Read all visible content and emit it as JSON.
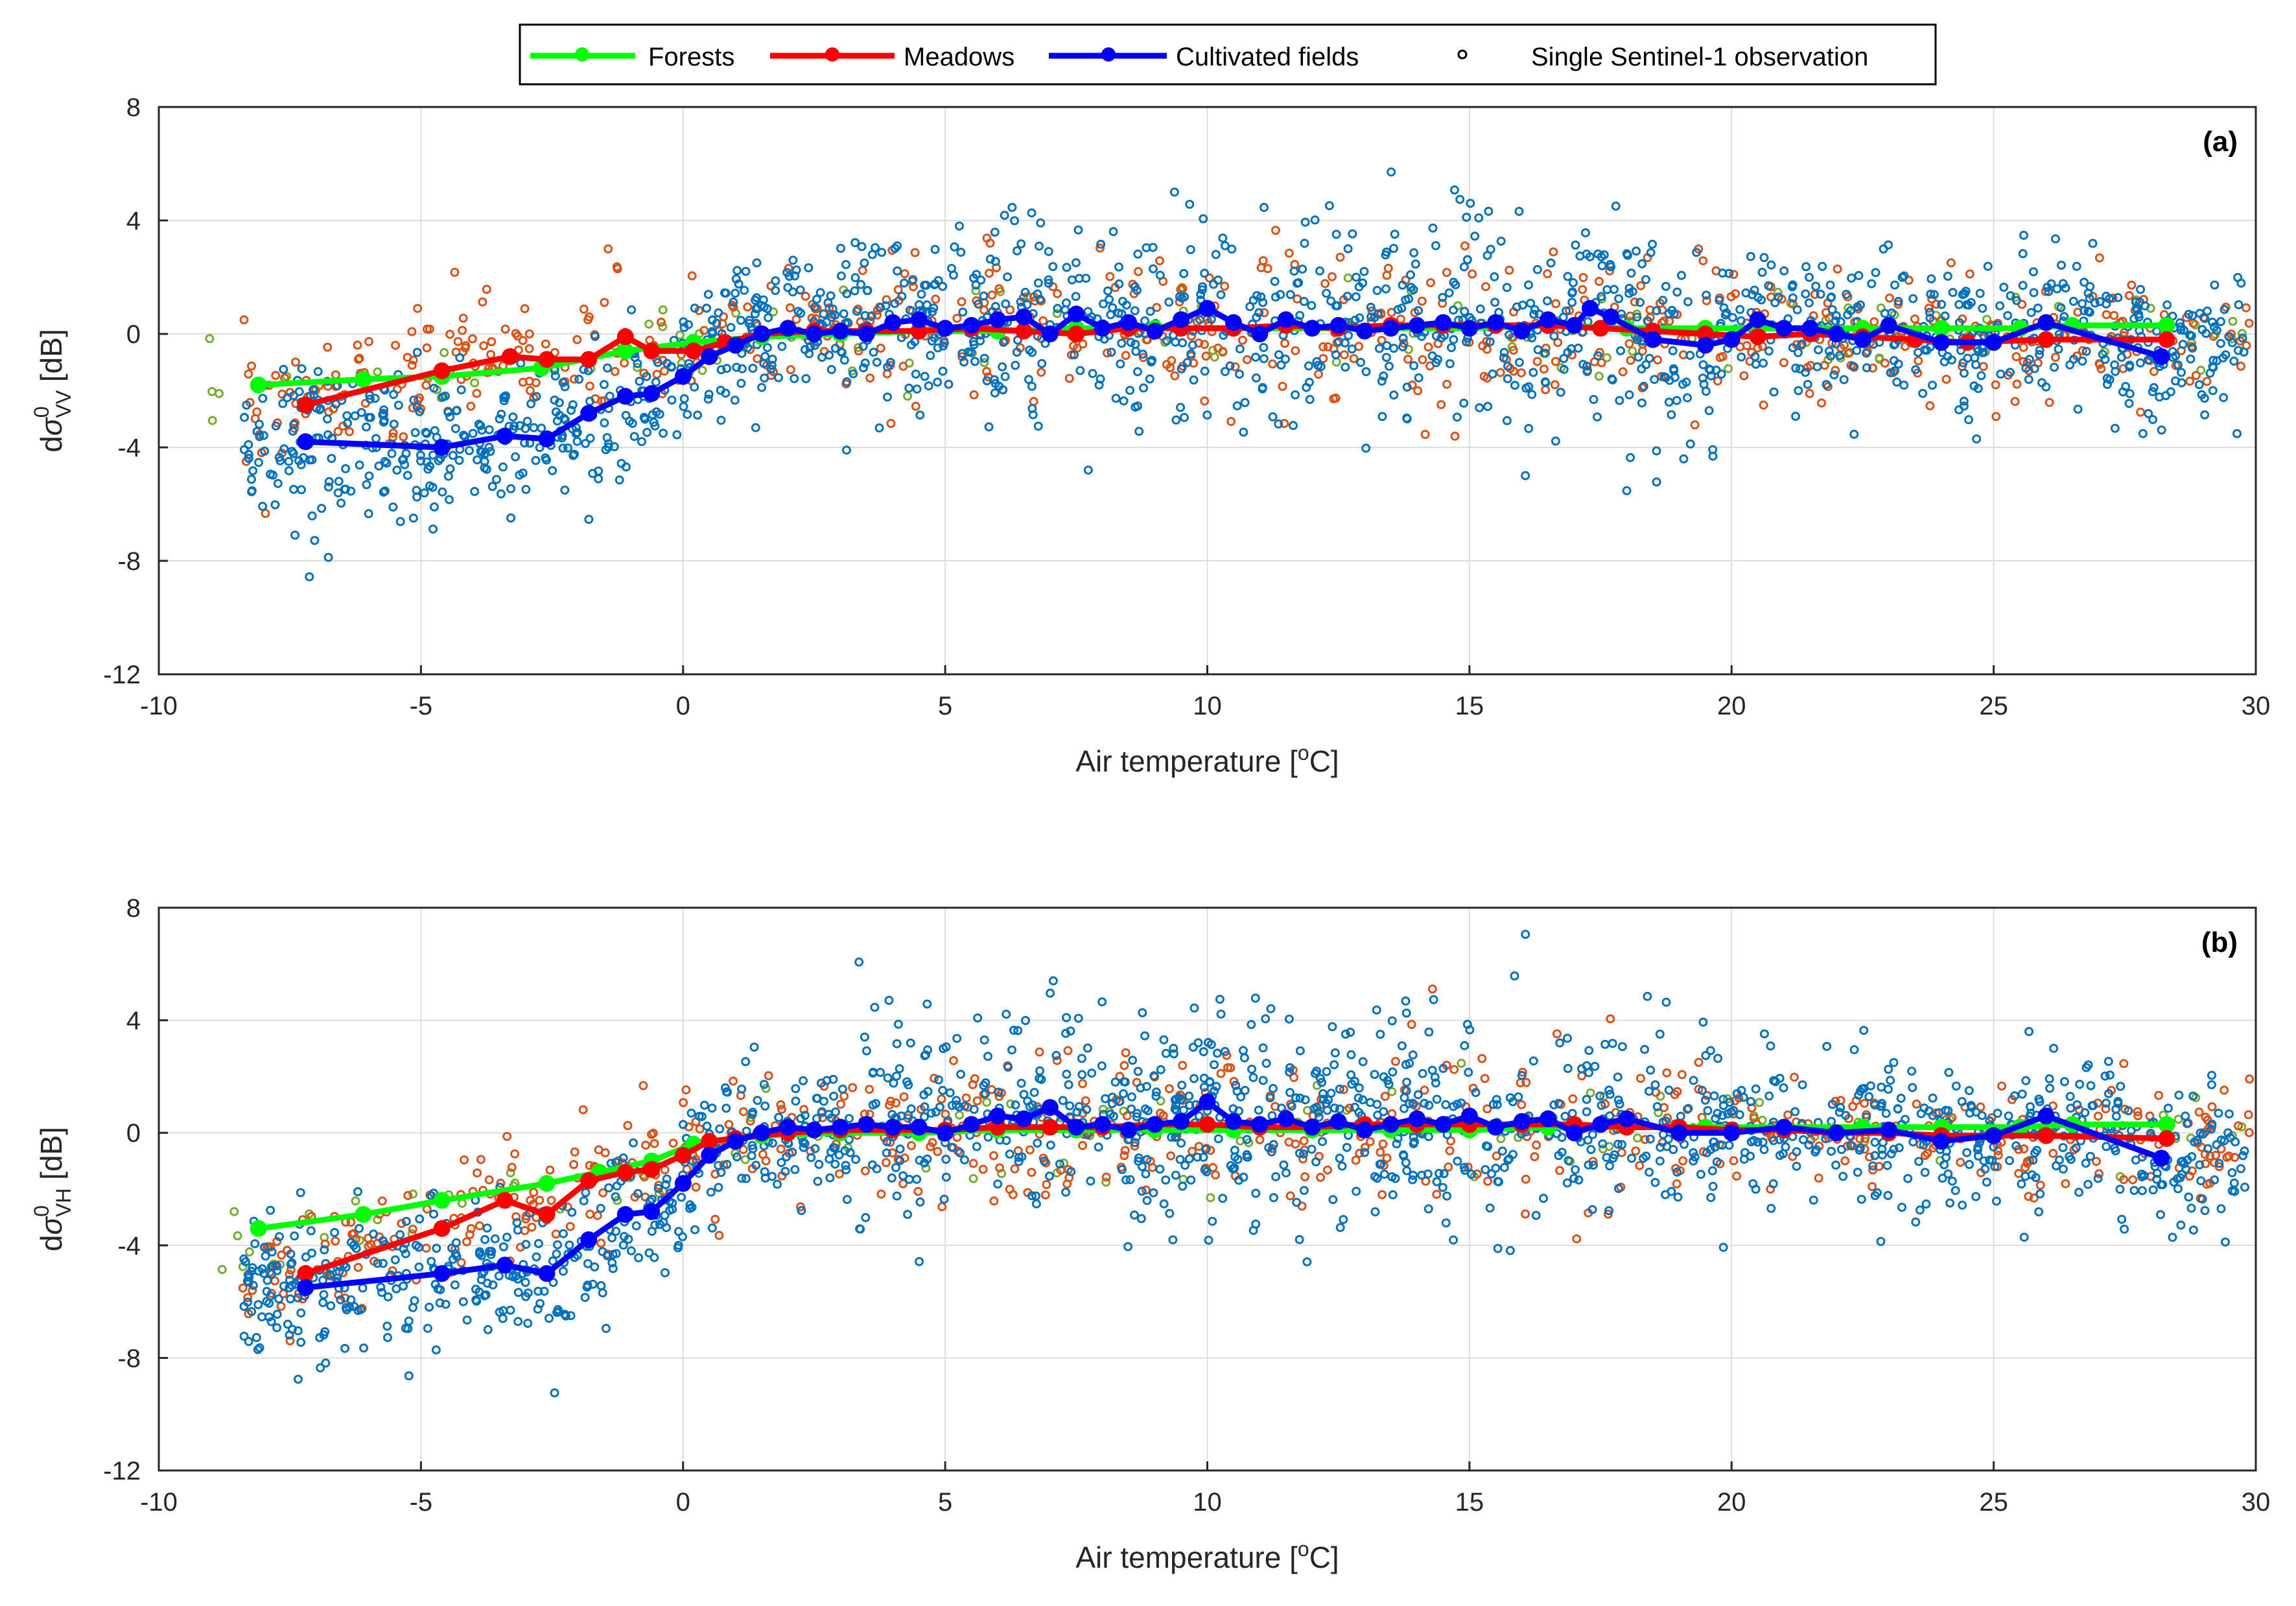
{
  "legend": {
    "entries": [
      {
        "label": "Forests",
        "color": "#00ff00",
        "marker": "filled-circle-line"
      },
      {
        "label": "Meadows",
        "color": "#ff0000",
        "marker": "filled-circle-line"
      },
      {
        "label": "Cultivated fields",
        "color": "#0000ff",
        "marker": "filled-circle-line"
      },
      {
        "label": "Single Sentinel-1 observation",
        "color": "#000000",
        "marker": "open-circle"
      }
    ]
  },
  "chart_data": [
    {
      "type": "scatter",
      "panel_tag": "(a)",
      "xlabel_main": "Air temperature [",
      "xlabel_sup": "o",
      "xlabel_end": "C]",
      "ylabel_prefix": "d",
      "ylabel_symbol": "σ",
      "ylabel_sup": "0",
      "ylabel_sub": "VV",
      "ylabel_unit": " [dB]",
      "xlim": [
        -10,
        30
      ],
      "ylim": [
        -12,
        8
      ],
      "xticks": [
        "-10",
        "-5",
        "0",
        "5",
        "10",
        "15",
        "20",
        "25",
        "30"
      ],
      "yticks": [
        "-12",
        "-8",
        "-4",
        "0",
        "4",
        "8"
      ],
      "grid": true,
      "scatter_colors": {
        "forests": "#77ac30",
        "meadows": "#d95319",
        "cultivated": "#0072bd"
      },
      "series": [
        {
          "name": "Forests",
          "color": "#00ff00",
          "x": [
            -8.1,
            -6.1,
            -4.6,
            -2.7,
            -1.1,
            0.2,
            1.5,
            3,
            4.5,
            6,
            7.5,
            9,
            10.5,
            12,
            13.5,
            15,
            16.5,
            18,
            19.5,
            21,
            22.5,
            24,
            25.5,
            26.5,
            28.3
          ],
          "y": [
            -1.8,
            -1.6,
            -1.5,
            -1.2,
            -0.6,
            -0.3,
            -0.1,
            0.0,
            0.1,
            0.1,
            0.2,
            0.2,
            0.2,
            0.2,
            0.2,
            0.2,
            0.3,
            0.2,
            0.2,
            0.2,
            0.2,
            0.2,
            0.2,
            0.3,
            0.3
          ]
        },
        {
          "name": "Meadows",
          "color": "#ff0000",
          "x": [
            -7.2,
            -4.6,
            -3.3,
            -2.6,
            -1.8,
            -1.1,
            -0.6,
            0.2,
            0.8,
            1.5,
            2.5,
            3.5,
            4.5,
            5.5,
            6.5,
            7.5,
            8.5,
            9.5,
            10.5,
            11.5,
            12.5,
            13.5,
            14.5,
            15.5,
            16.5,
            17.5,
            18.5,
            19.5,
            20.5,
            21.5,
            22.5,
            23.5,
            24.5,
            26,
            28.3
          ],
          "y": [
            -2.5,
            -1.3,
            -0.8,
            -0.9,
            -0.9,
            -0.1,
            -0.6,
            -0.6,
            -0.3,
            0.0,
            0.1,
            0.1,
            0.1,
            0.2,
            0.1,
            0.0,
            0.2,
            0.2,
            0.2,
            0.3,
            0.2,
            0.3,
            0.3,
            0.3,
            0.3,
            0.2,
            0.1,
            0.0,
            -0.1,
            0.0,
            -0.1,
            -0.2,
            -0.3,
            -0.2,
            -0.2
          ]
        },
        {
          "name": "Cultivated fields",
          "color": "#0000ff",
          "x": [
            -7.2,
            -4.6,
            -3.4,
            -2.6,
            -1.8,
            -1.1,
            -0.6,
            0.0,
            0.5,
            1.0,
            1.5,
            2.0,
            2.5,
            3.0,
            3.5,
            4.0,
            4.5,
            5.0,
            5.5,
            6.0,
            6.5,
            7.0,
            7.5,
            8.0,
            8.5,
            9.0,
            9.5,
            10.0,
            10.5,
            11.0,
            11.5,
            12.0,
            12.5,
            13.0,
            13.5,
            14.0,
            14.5,
            15.0,
            15.5,
            16.0,
            16.5,
            17.0,
            17.3,
            17.7,
            18.5,
            19.5,
            20.0,
            20.5,
            21.0,
            21.5,
            22.0,
            22.5,
            23.0,
            24.0,
            25.0,
            26.0,
            28.2
          ],
          "y": [
            -3.8,
            -4.0,
            -3.6,
            -3.7,
            -2.8,
            -2.2,
            -2.1,
            -1.5,
            -0.8,
            -0.4,
            0.0,
            0.2,
            0.0,
            0.1,
            0.0,
            0.4,
            0.5,
            0.2,
            0.3,
            0.5,
            0.6,
            0.0,
            0.7,
            0.2,
            0.4,
            0.1,
            0.5,
            0.9,
            0.4,
            0.0,
            0.5,
            0.2,
            0.3,
            0.1,
            0.2,
            0.3,
            0.4,
            0.2,
            0.4,
            0.1,
            0.5,
            0.3,
            0.9,
            0.6,
            -0.2,
            -0.4,
            -0.2,
            0.5,
            0.2,
            0.2,
            0.0,
            -0.2,
            0.3,
            -0.3,
            -0.3,
            0.4,
            -0.8
          ]
        }
      ]
    },
    {
      "type": "scatter",
      "panel_tag": "(b)",
      "xlabel_main": "Air temperature [",
      "xlabel_sup": "o",
      "xlabel_end": "C]",
      "ylabel_prefix": "d",
      "ylabel_symbol": "σ",
      "ylabel_sup": "0",
      "ylabel_sub": "VH",
      "ylabel_unit": " [dB]",
      "xlim": [
        -10,
        30
      ],
      "ylim": [
        -12,
        8
      ],
      "xticks": [
        "-10",
        "-5",
        "0",
        "5",
        "10",
        "15",
        "20",
        "25",
        "30"
      ],
      "yticks": [
        "-12",
        "-8",
        "-4",
        "0",
        "4",
        "8"
      ],
      "grid": true,
      "scatter_colors": {
        "forests": "#77ac30",
        "meadows": "#d95319",
        "cultivated": "#0072bd"
      },
      "series": [
        {
          "name": "Forests",
          "color": "#00ff00",
          "x": [
            -8.1,
            -6.1,
            -4.6,
            -2.6,
            -1.6,
            -0.6,
            0.2,
            1.5,
            3,
            4.5,
            6,
            7.5,
            9,
            10.5,
            12,
            13.5,
            15,
            16.5,
            18,
            19.5,
            21,
            22.5,
            24,
            25.5,
            26.5,
            28.3
          ],
          "y": [
            -3.4,
            -2.9,
            -2.4,
            -1.8,
            -1.4,
            -1.0,
            -0.4,
            -0.1,
            0.0,
            0.0,
            0.1,
            0.1,
            0.1,
            0.1,
            0.1,
            0.1,
            0.1,
            0.2,
            0.2,
            0.2,
            0.2,
            0.2,
            0.2,
            0.2,
            0.3,
            0.3
          ]
        },
        {
          "name": "Meadows",
          "color": "#ff0000",
          "x": [
            -7.2,
            -4.6,
            -3.4,
            -2.6,
            -1.8,
            -1.1,
            -0.6,
            0.0,
            0.5,
            1.0,
            2.0,
            3.0,
            4.0,
            5.0,
            6.0,
            7.0,
            8.0,
            9.0,
            10.0,
            11.0,
            12.0,
            13.0,
            14.0,
            15.0,
            16.0,
            17.0,
            18.0,
            19.0,
            20.0,
            21.0,
            22.0,
            23.0,
            24.0,
            25.0,
            26.0,
            28.3
          ],
          "y": [
            -5.0,
            -3.4,
            -2.4,
            -2.9,
            -1.7,
            -1.4,
            -1.3,
            -0.8,
            -0.3,
            -0.2,
            0.0,
            0.1,
            0.1,
            0.1,
            0.2,
            0.2,
            0.2,
            0.3,
            0.3,
            0.2,
            0.2,
            0.3,
            0.3,
            0.3,
            0.3,
            0.3,
            0.2,
            0.2,
            0.1,
            0.1,
            0.0,
            0.0,
            -0.1,
            -0.1,
            -0.1,
            -0.2
          ]
        },
        {
          "name": "Cultivated fields",
          "color": "#0000ff",
          "x": [
            -7.2,
            -4.6,
            -3.4,
            -2.6,
            -1.8,
            -1.1,
            -0.6,
            0.0,
            0.5,
            1.0,
            1.5,
            2.0,
            2.5,
            3.0,
            3.5,
            4.0,
            4.5,
            5.0,
            5.5,
            6.0,
            6.5,
            7.0,
            7.5,
            8.0,
            8.5,
            9.0,
            9.5,
            10.0,
            10.5,
            11.0,
            11.5,
            12.0,
            12.5,
            13.0,
            13.5,
            14.0,
            14.5,
            15.0,
            15.5,
            16.0,
            16.5,
            17.0,
            17.5,
            18.0,
            19.0,
            20.0,
            21.0,
            22.0,
            23.0,
            24.0,
            25.0,
            26.0,
            28.2
          ],
          "y": [
            -5.5,
            -5.0,
            -4.7,
            -5.0,
            -3.8,
            -2.9,
            -2.8,
            -1.8,
            -0.8,
            -0.3,
            0.0,
            0.2,
            0.1,
            0.2,
            0.3,
            0.2,
            0.2,
            0.0,
            0.3,
            0.6,
            0.5,
            0.9,
            0.2,
            0.3,
            0.1,
            0.3,
            0.4,
            1.1,
            0.4,
            0.3,
            0.5,
            0.2,
            0.4,
            0.1,
            0.3,
            0.5,
            0.3,
            0.6,
            0.2,
            0.4,
            0.5,
            0.0,
            0.3,
            0.5,
            0.0,
            0.0,
            0.2,
            0.0,
            0.1,
            -0.3,
            -0.1,
            0.6,
            -0.9
          ]
        }
      ]
    }
  ]
}
